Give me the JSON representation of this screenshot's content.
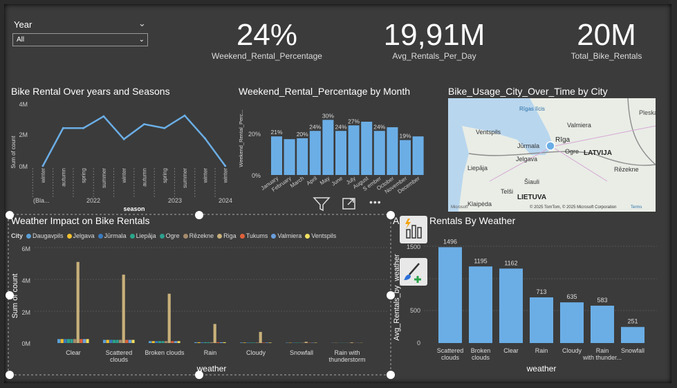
{
  "slicer": {
    "title": "Year",
    "value": "All"
  },
  "kpis": [
    {
      "value": "24%",
      "label": "Weekend_Rental_Percentage"
    },
    {
      "value": "19,91M",
      "label": "Avg_Rentals_Per_Day"
    },
    {
      "value": "20M",
      "label": "Total_Bike_Rentals"
    }
  ],
  "line_chart": {
    "title": "Bike Rental Over years and Seasons",
    "ylabel": "Sum of count",
    "xlabel": "season",
    "yticks": [
      "4M",
      "2M",
      "0M"
    ],
    "seasons": [
      "winter",
      "autumn",
      "spring",
      "summer",
      "winter",
      "autumn",
      "spring",
      "summer",
      "winter",
      "winter"
    ],
    "groups": [
      "(Bla...",
      "2022",
      "2023",
      "2024"
    ]
  },
  "month_chart": {
    "title": "Weekend_Rental_Percentage by Month",
    "ylabel": "Weekend_Rental_Perc...",
    "yticks": [
      "20%",
      "0%"
    ],
    "months": [
      "January",
      "February",
      "March",
      "April",
      "May",
      "June",
      "July",
      "August",
      "September",
      "October",
      "November",
      "December"
    ],
    "xlabels": [
      "January",
      "February",
      "March",
      "April",
      "May",
      "June",
      "July",
      "August",
      "S ember",
      "October",
      "November",
      "December"
    ],
    "labels": [
      "21%",
      "",
      "20%",
      "24%",
      "30%",
      "24%",
      "27%",
      "",
      "24%",
      "",
      "19%",
      ""
    ]
  },
  "map": {
    "title": "Bike_Usage_City_Over_Time by City",
    "places": [
      "Pleska",
      "Rīgas līcis",
      "Valmiera",
      "Ventspils",
      "Rīga",
      "Jūrmala",
      "Ogre",
      "LATVIJA",
      "Jelgava",
      "Liepāja",
      "Rēzekne",
      "Šiauli",
      "Telši",
      "LIETUVA",
      "Klaipėda"
    ],
    "attribution": "© 2025 TomTom, © 2025 Microsoft Corporation",
    "terms": "Terms",
    "brand": "Microsoft"
  },
  "weather_chart": {
    "title": "Weather Impact on Bike Rentals",
    "legend_title": "City",
    "ylabel": "Sum of count",
    "xlabel": "weather",
    "yticks": [
      "6M",
      "4M",
      "2M",
      "0M"
    ],
    "categories": [
      "Clear",
      "Scattered clouds",
      "Broken clouds",
      "Rain",
      "Cloudy",
      "Snowfall",
      "Rain with thunderstorm"
    ]
  },
  "avg_chart": {
    "title": "Avg_Rentals By Weather",
    "title_visible": "Rentals By Weather",
    "title_prefix": "A",
    "ylabel": "Avg_Rentals_by_weather",
    "xlabel": "weather",
    "yticks": [
      "1500",
      "1000",
      "500",
      "0"
    ],
    "categories": [
      "Scattered clouds",
      "Broken clouds",
      "Clear",
      "Rain",
      "Cloudy",
      "Rain with thunder...",
      "Snowfall"
    ]
  },
  "chart_data": [
    {
      "type": "line",
      "title": "Bike Rental Over years and Seasons",
      "xlabel": "season",
      "ylabel": "Sum of count",
      "categories": [
        "(Blank) winter",
        "2022 autumn",
        "2022 spring",
        "2022 summer",
        "2022 winter",
        "2023 autumn",
        "2023 spring",
        "2023 summer",
        "2023 winter",
        "2024 winter"
      ],
      "values": [
        0.05,
        2.45,
        2.45,
        3.2,
        1.75,
        2.7,
        2.45,
        3.25,
        1.8,
        0.05
      ],
      "ylim": [
        0,
        4
      ],
      "unit": "M"
    },
    {
      "type": "bar",
      "title": "Weekend_Rental_Percentage by Month",
      "ylabel": "Weekend_Rental_Perc...",
      "categories": [
        "January",
        "February",
        "March",
        "April",
        "May",
        "June",
        "July",
        "August",
        "September",
        "October",
        "November",
        "December"
      ],
      "values": [
        21,
        19.5,
        20,
        24,
        30,
        24,
        27,
        29,
        24,
        26,
        19,
        21
      ],
      "ylim": [
        0,
        32
      ],
      "unit": "%"
    },
    {
      "type": "bar",
      "title": "Weather Impact on Bike Rentals",
      "xlabel": "weather",
      "ylabel": "Sum of count",
      "unit": "M",
      "ylim": [
        0,
        6
      ],
      "categories": [
        "Clear",
        "Scattered clouds",
        "Broken clouds",
        "Rain",
        "Cloudy",
        "Snowfall",
        "Rain with thunderstorm"
      ],
      "series": [
        {
          "name": "Daugavpils",
          "color": "#5aa0d8",
          "values": [
            0.25,
            0.2,
            0.12,
            0.05,
            0.03,
            0.02,
            0.01
          ]
        },
        {
          "name": "Jelgava",
          "color": "#f2c12e",
          "values": [
            0.25,
            0.2,
            0.12,
            0.05,
            0.03,
            0.02,
            0.01
          ]
        },
        {
          "name": "Jūrmala",
          "color": "#3a7bbf",
          "values": [
            0.25,
            0.2,
            0.12,
            0.05,
            0.03,
            0.02,
            0.01
          ]
        },
        {
          "name": "Liepāja",
          "color": "#2aa58a",
          "values": [
            0.25,
            0.2,
            0.12,
            0.05,
            0.03,
            0.02,
            0.01
          ]
        },
        {
          "name": "Ogre",
          "color": "#2e9e8f",
          "values": [
            0.25,
            0.2,
            0.12,
            0.05,
            0.03,
            0.02,
            0.01
          ]
        },
        {
          "name": "Rēzekne",
          "color": "#a58a6a",
          "values": [
            0.25,
            0.2,
            0.12,
            0.05,
            0.03,
            0.02,
            0.01
          ]
        },
        {
          "name": "Riga",
          "color": "#c8b07a",
          "values": [
            5.1,
            4.3,
            3.1,
            1.2,
            0.7,
            0.08,
            0.04
          ]
        },
        {
          "name": "Tukums",
          "color": "#e0603a",
          "values": [
            0.25,
            0.2,
            0.12,
            0.05,
            0.03,
            0.02,
            0.01
          ]
        },
        {
          "name": "Valmiera",
          "color": "#6a9fdc",
          "values": [
            0.25,
            0.2,
            0.12,
            0.05,
            0.03,
            0.02,
            0.01
          ]
        },
        {
          "name": "Ventspils",
          "color": "#f0e060",
          "values": [
            0.25,
            0.2,
            0.12,
            0.05,
            0.03,
            0.02,
            0.01
          ]
        }
      ]
    },
    {
      "type": "bar",
      "title": "Avg_Rentals By Weather",
      "xlabel": "weather",
      "ylabel": "Avg_Rentals_by_weather",
      "ylim": [
        0,
        1600
      ],
      "categories": [
        "Scattered clouds",
        "Broken clouds",
        "Clear",
        "Rain",
        "Cloudy",
        "Rain with thunder...",
        "Snowfall"
      ],
      "values": [
        1496,
        1195,
        1162,
        713,
        635,
        583,
        251
      ],
      "labels": [
        "1496",
        "1195",
        "1162",
        "713",
        "635",
        "583",
        "251"
      ]
    }
  ],
  "colors": {
    "bar": "#6baee6",
    "line": "#6baee6",
    "background": "#3b3b3b"
  }
}
